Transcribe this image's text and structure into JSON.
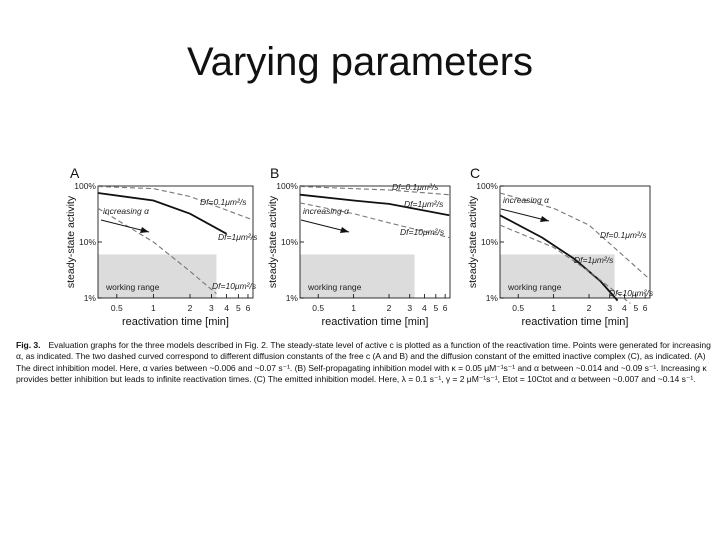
{
  "slide": {
    "title": "Varying parameters"
  },
  "chart_data": [
    {
      "panel": "A",
      "type": "line",
      "xlabel": "reactivation time [min]",
      "ylabel": "steady-state activity",
      "x_ticks": [
        "0.5",
        "1",
        "2",
        "3",
        "4",
        "5",
        "6"
      ],
      "y_ticks": [
        "100%",
        "10%",
        "1%"
      ],
      "xlim": [
        0.35,
        6.6
      ],
      "ylim": [
        0.01,
        1.0
      ],
      "scale": "log-log",
      "shaded_label": "working range",
      "shaded": {
        "x": [
          0.35,
          3.3
        ],
        "y": [
          0.01,
          0.06
        ]
      },
      "annotations": [
        "Df=0.1μm²/s",
        "Df=1μm²/s",
        "Df=10μm²/s",
        "increasing α"
      ],
      "series": [
        {
          "style": "solid",
          "x": [
            0.35,
            1.0,
            2.0,
            4.0
          ],
          "y": [
            0.75,
            0.55,
            0.32,
            0.14
          ]
        },
        {
          "style": "dashed",
          "x": [
            0.35,
            1.0,
            2.0,
            6.5
          ],
          "y": [
            0.98,
            0.9,
            0.65,
            0.25
          ]
        },
        {
          "style": "dashed",
          "x": [
            0.35,
            1.0,
            2.0,
            3.3
          ],
          "y": [
            0.4,
            0.1,
            0.03,
            0.012
          ]
        }
      ]
    },
    {
      "panel": "B",
      "type": "line",
      "xlabel": "reactivation time [min]",
      "ylabel": "steady-state activity",
      "x_ticks": [
        "0.5",
        "1",
        "2",
        "3",
        "4",
        "5",
        "6"
      ],
      "y_ticks": [
        "100%",
        "10%",
        "1%"
      ],
      "xlim": [
        0.35,
        6.6
      ],
      "ylim": [
        0.01,
        1.0
      ],
      "scale": "log-log",
      "shaded_label": "working range",
      "shaded": {
        "x": [
          0.35,
          3.3
        ],
        "y": [
          0.01,
          0.06
        ]
      },
      "annotations": [
        "Df=0.1μm²/s",
        "Df=1μm²/s",
        "Df=10μm²/s",
        "increasing α"
      ],
      "series": [
        {
          "style": "solid",
          "x": [
            0.35,
            1.0,
            2.0,
            6.5
          ],
          "y": [
            0.7,
            0.55,
            0.48,
            0.3
          ]
        },
        {
          "style": "dashed",
          "x": [
            0.35,
            2.0,
            6.5
          ],
          "y": [
            0.98,
            0.85,
            0.7
          ]
        },
        {
          "style": "dashed",
          "x": [
            0.35,
            1.0,
            2.0,
            6.5
          ],
          "y": [
            0.5,
            0.32,
            0.22,
            0.12
          ]
        }
      ]
    },
    {
      "panel": "C",
      "type": "line",
      "xlabel": "reactivation time [min]",
      "ylabel": "steady-state activity",
      "x_ticks": [
        "0.5",
        "1",
        "2",
        "3",
        "4",
        "5",
        "6"
      ],
      "y_ticks": [
        "100%",
        "10%",
        "1%"
      ],
      "xlim": [
        0.35,
        6.6
      ],
      "ylim": [
        0.01,
        1.0
      ],
      "scale": "log-log",
      "shaded_label": "working range",
      "shaded": {
        "x": [
          0.35,
          3.3
        ],
        "y": [
          0.01,
          0.06
        ]
      },
      "annotations": [
        "Df=0.1μm²/s",
        "Df=1μm²/s",
        "Df=10μm²/s",
        "increasing α"
      ],
      "series": [
        {
          "style": "solid",
          "x": [
            0.35,
            0.8,
            1.5,
            2.5,
            3.5
          ],
          "y": [
            0.3,
            0.12,
            0.05,
            0.02,
            0.009
          ]
        },
        {
          "style": "dashed",
          "x": [
            0.35,
            1.0,
            2.0,
            6.5
          ],
          "y": [
            0.75,
            0.4,
            0.2,
            0.022
          ]
        },
        {
          "style": "dashed",
          "x": [
            0.35,
            1.0,
            2.0,
            4.5
          ],
          "y": [
            0.2,
            0.08,
            0.03,
            0.008
          ]
        }
      ]
    }
  ],
  "caption": {
    "label": "Fig. 3.",
    "text": "Evaluation graphs for the three models described in Fig. 2. The steady-state level of active c is plotted as a function of the reactivation time. Points were generated for increasing α, as indicated. The two dashed curved correspond to different diffusion constants of the free c (A and B) and the diffusion constant of the emitted inactive complex (C), as indicated. (A) The direct inhibition model. Here, α varies between ~0.006 and ~0.07 s⁻¹. (B) Self-propagating inhibition model with κ = 0.05 μM⁻¹s⁻¹ and α between ~0.014 and ~0.09 s⁻¹. Increasing κ provides better inhibition but leads to infinite reactivation times. (C) The emitted inhibition model. Here, λ = 0.1 s⁻¹, γ = 2 μM⁻¹s⁻¹, Etot = 10Ctot and α between ~0.007 and ~0.14 s⁻¹."
  }
}
